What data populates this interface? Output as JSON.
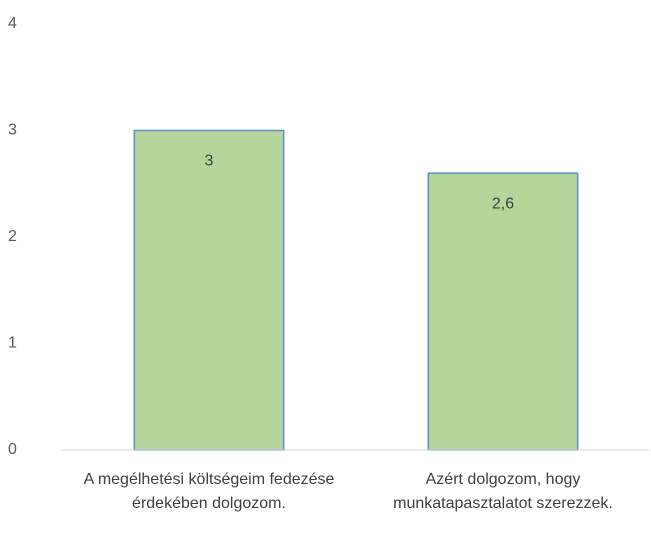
{
  "chart_data": {
    "type": "bar",
    "categories": [
      "A megélhetési költségeim fedezése érdekében dolgozom.",
      "Azért dolgozom, hogy munkatapasztalatot szerezzek."
    ],
    "values": [
      3,
      2.6
    ],
    "value_labels": [
      "3",
      "2,6"
    ],
    "color": "#b4d69b",
    "edge_color": "#5b8fd0",
    "ylim": [
      0,
      4
    ],
    "yticks": [
      0,
      1,
      2,
      3,
      4
    ],
    "grid": false
  }
}
